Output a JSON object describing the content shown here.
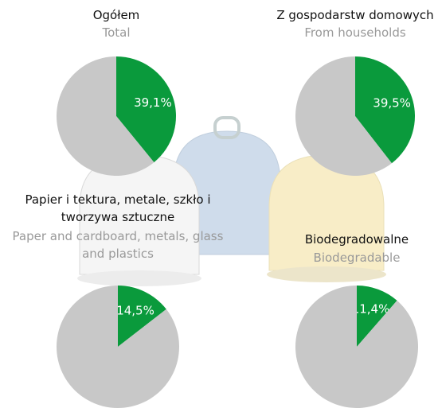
{
  "chart_data": [
    {
      "type": "pie",
      "title": "Ogółem",
      "subtitle": "Total",
      "values": [
        39.1,
        60.9
      ],
      "value_labels": [
        "39,1%",
        null
      ],
      "colors": [
        "#0a9a3c",
        "#c8c8c8"
      ]
    },
    {
      "type": "pie",
      "title": "Z gospodarstw domowych",
      "subtitle": "From households",
      "values": [
        39.5,
        60.5
      ],
      "value_labels": [
        "39,5%",
        null
      ],
      "colors": [
        "#0a9a3c",
        "#c8c8c8"
      ]
    },
    {
      "type": "pie",
      "title": "Papier i tektura, metale, szkło i tworzywa sztuczne",
      "subtitle": "Paper and cardboard, metals, glass and plastics",
      "values": [
        14.5,
        85.5
      ],
      "value_labels": [
        "14,5%",
        null
      ],
      "colors": [
        "#0a9a3c",
        "#c8c8c8"
      ]
    },
    {
      "type": "pie",
      "title": "Biodegradowalne",
      "subtitle": "Biodegradable",
      "values": [
        11.4,
        88.6
      ],
      "value_labels": [
        "11,4%",
        null
      ],
      "colors": [
        "#0a9a3c",
        "#c8c8c8"
      ]
    }
  ]
}
